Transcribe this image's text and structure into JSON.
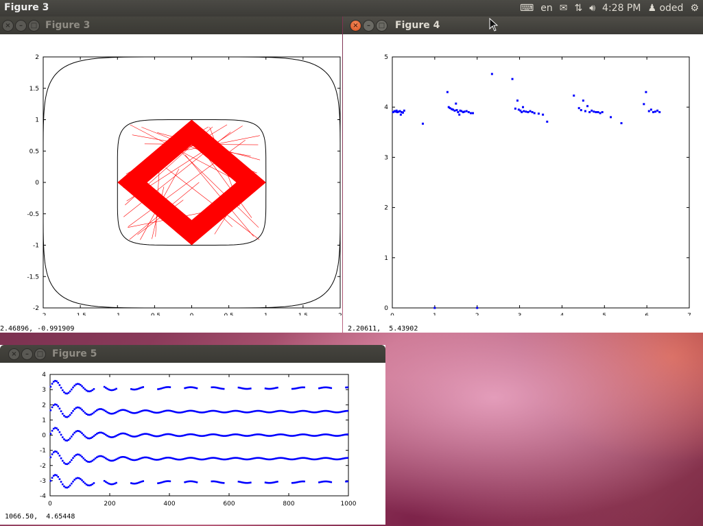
{
  "topbar": {
    "app_title": "Figure 3",
    "keyboard_layout": "en",
    "time": "4:28 PM",
    "user": "oded",
    "icons": [
      "keyboard-icon",
      "mail-icon",
      "network-icon",
      "volume-icon",
      "user-icon",
      "power-gear-icon"
    ]
  },
  "figure3": {
    "title": "Figure 3",
    "status": "2.46896, -0.991909",
    "chart_data": {
      "type": "line",
      "title": "",
      "xlabel": "",
      "ylabel": "",
      "xlim": [
        -2,
        2
      ],
      "ylim": [
        -2,
        2
      ],
      "xticks": [
        "-2",
        "-1.5",
        "-1",
        "-0.5",
        "0",
        "0.5",
        "1",
        "1.5",
        "2"
      ],
      "yticks": [
        "2",
        "1.5",
        "1",
        "0.5",
        "0",
        "-0.5",
        "-1",
        "-1.5",
        "-2"
      ],
      "series": [
        {
          "description": "outer rounded-square boundary curve",
          "color": "#000000",
          "shape": "superellipse",
          "half_width": 2,
          "exponent": 6
        },
        {
          "description": "inner rounded-square boundary curve",
          "color": "#000000",
          "shape": "superellipse",
          "half_width": 1,
          "exponent": 6
        },
        {
          "description": "dense trajectory band forming diamond",
          "color": "#ff0000",
          "shape": "diamond-band",
          "outer": 1.0,
          "inner": 0.6
        }
      ]
    }
  },
  "figure4": {
    "title": "Figure 4",
    "status": "2.20611,  5.43902",
    "chart_data": {
      "type": "scatter",
      "title": "",
      "xlabel": "",
      "ylabel": "",
      "xlim": [
        0,
        7
      ],
      "ylim": [
        0,
        5
      ],
      "xticks": [
        "0",
        "1",
        "2",
        "3",
        "4",
        "5",
        "6",
        "7"
      ],
      "yticks": [
        "5",
        "4",
        "3",
        "2",
        "1",
        "0"
      ],
      "color": "#0000ff",
      "points": [
        [
          0.02,
          3.9
        ],
        [
          0.05,
          3.92
        ],
        [
          0.08,
          3.91
        ],
        [
          0.1,
          3.93
        ],
        [
          0.12,
          3.9
        ],
        [
          0.15,
          3.91
        ],
        [
          0.18,
          3.92
        ],
        [
          0.2,
          3.85
        ],
        [
          0.22,
          3.9
        ],
        [
          0.25,
          3.89
        ],
        [
          0.28,
          3.93
        ],
        [
          0.72,
          3.67
        ],
        [
          1.0,
          0.0
        ],
        [
          1.3,
          4.3
        ],
        [
          1.33,
          4.0
        ],
        [
          1.36,
          3.98
        ],
        [
          1.4,
          3.96
        ],
        [
          1.43,
          3.95
        ],
        [
          1.47,
          3.93
        ],
        [
          1.5,
          4.07
        ],
        [
          1.52,
          3.94
        ],
        [
          1.55,
          3.9
        ],
        [
          1.58,
          3.85
        ],
        [
          1.6,
          3.93
        ],
        [
          1.63,
          3.92
        ],
        [
          1.67,
          3.9
        ],
        [
          1.7,
          3.91
        ],
        [
          1.75,
          3.92
        ],
        [
          1.8,
          3.9
        ],
        [
          1.85,
          3.88
        ],
        [
          1.9,
          3.88
        ],
        [
          2.0,
          0.0
        ],
        [
          2.35,
          4.66
        ],
        [
          2.83,
          4.56
        ],
        [
          2.9,
          3.97
        ],
        [
          2.95,
          4.13
        ],
        [
          2.98,
          3.95
        ],
        [
          3.02,
          3.93
        ],
        [
          3.05,
          3.9
        ],
        [
          3.08,
          4.0
        ],
        [
          3.1,
          3.92
        ],
        [
          3.15,
          3.91
        ],
        [
          3.2,
          3.9
        ],
        [
          3.25,
          3.92
        ],
        [
          3.3,
          3.9
        ],
        [
          3.35,
          3.88
        ],
        [
          3.45,
          3.87
        ],
        [
          3.55,
          3.85
        ],
        [
          3.65,
          3.71
        ],
        [
          4.28,
          4.23
        ],
        [
          4.4,
          3.98
        ],
        [
          4.45,
          3.94
        ],
        [
          4.5,
          4.13
        ],
        [
          4.55,
          3.92
        ],
        [
          4.6,
          4.02
        ],
        [
          4.65,
          3.9
        ],
        [
          4.7,
          3.93
        ],
        [
          4.75,
          3.91
        ],
        [
          4.8,
          3.9
        ],
        [
          4.85,
          3.9
        ],
        [
          4.9,
          3.88
        ],
        [
          4.95,
          3.9
        ],
        [
          5.15,
          3.8
        ],
        [
          5.4,
          3.68
        ],
        [
          5.93,
          4.06
        ],
        [
          5.98,
          4.3
        ],
        [
          6.05,
          3.92
        ],
        [
          6.1,
          3.95
        ],
        [
          6.15,
          3.9
        ],
        [
          6.2,
          3.91
        ],
        [
          6.25,
          3.93
        ],
        [
          6.3,
          3.9
        ]
      ]
    }
  },
  "figure5": {
    "title": "Figure 5",
    "status": "1066.50,  4.65448",
    "chart_data": {
      "type": "scatter",
      "title": "",
      "xlabel": "",
      "ylabel": "",
      "xlim": [
        0,
        1000
      ],
      "ylim": [
        -4,
        4
      ],
      "xticks": [
        "0",
        "200",
        "400",
        "600",
        "800",
        "1000"
      ],
      "yticks": [
        "4",
        "3",
        "2",
        "1",
        "0",
        "-1",
        "-2",
        "-3",
        "-4"
      ],
      "color": "#0000ff",
      "series": [
        {
          "name": "",
          "level": 3.1,
          "start_amp": 0.5,
          "dashed": true
        },
        {
          "name": "",
          "level": 1.55,
          "start_amp": 0.5,
          "dashed": false
        },
        {
          "name": "",
          "level": 0.0,
          "start_amp": 0.5,
          "dashed": false
        },
        {
          "name": "",
          "level": -1.55,
          "start_amp": 0.5,
          "dashed": false
        },
        {
          "name": "",
          "level": -3.1,
          "start_amp": 0.5,
          "dashed": true
        }
      ]
    }
  }
}
